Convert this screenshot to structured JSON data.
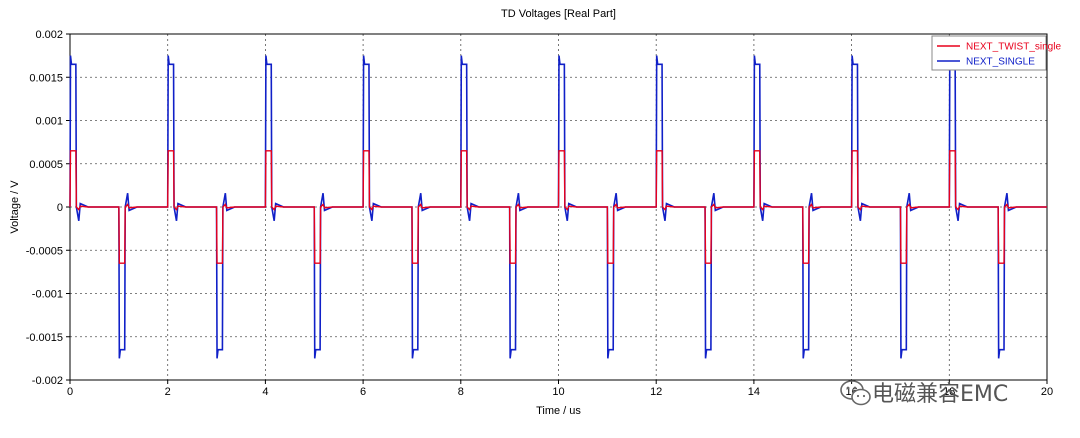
{
  "chart_data": {
    "type": "line",
    "title": "TD Voltages [Real Part]",
    "xlabel": "Time / us",
    "ylabel": "Voltage / V",
    "xlim": [
      0,
      20
    ],
    "ylim": [
      -0.002,
      0.002
    ],
    "x_ticks": [
      0,
      2,
      4,
      6,
      8,
      10,
      12,
      14,
      16,
      18,
      20
    ],
    "y_ticks": [
      0.002,
      0.0015,
      0.001,
      0.0005,
      0,
      -0.0005,
      -0.001,
      -0.0015,
      -0.002
    ],
    "x_tick_labels": [
      "0",
      "2",
      "4",
      "6",
      "8",
      "10",
      "12",
      "14",
      "16",
      "18",
      "20"
    ],
    "y_tick_labels": [
      "0.002",
      "0.0015",
      "0.001",
      "0.0005",
      "0",
      "-0.0005",
      "-0.001",
      "-0.0015",
      "-0.002"
    ],
    "grid": true,
    "legend_position": "top-right",
    "series": [
      {
        "name": "NEXT_TWIST_single",
        "color": "#e8001c",
        "pulse_peak": 0.00065,
        "pulse_trough": -0.00065
      },
      {
        "name": "NEXT_SINGLE",
        "color": "#1020c8",
        "pulse_peak": 0.00165,
        "pulse_trough": -0.00165,
        "spike_peak": 0.00175,
        "spike_trough": -0.00175
      }
    ],
    "pulse_period": 2,
    "rising_edges": [
      0,
      2,
      4,
      6,
      8,
      10,
      12,
      14,
      16,
      18
    ],
    "falling_edges": [
      1,
      3,
      5,
      7,
      9,
      11,
      13,
      15,
      17,
      19
    ],
    "pulse_width": 0.12
  },
  "watermark": {
    "text": "电磁兼容EMC",
    "icon": "wechat-icon"
  }
}
